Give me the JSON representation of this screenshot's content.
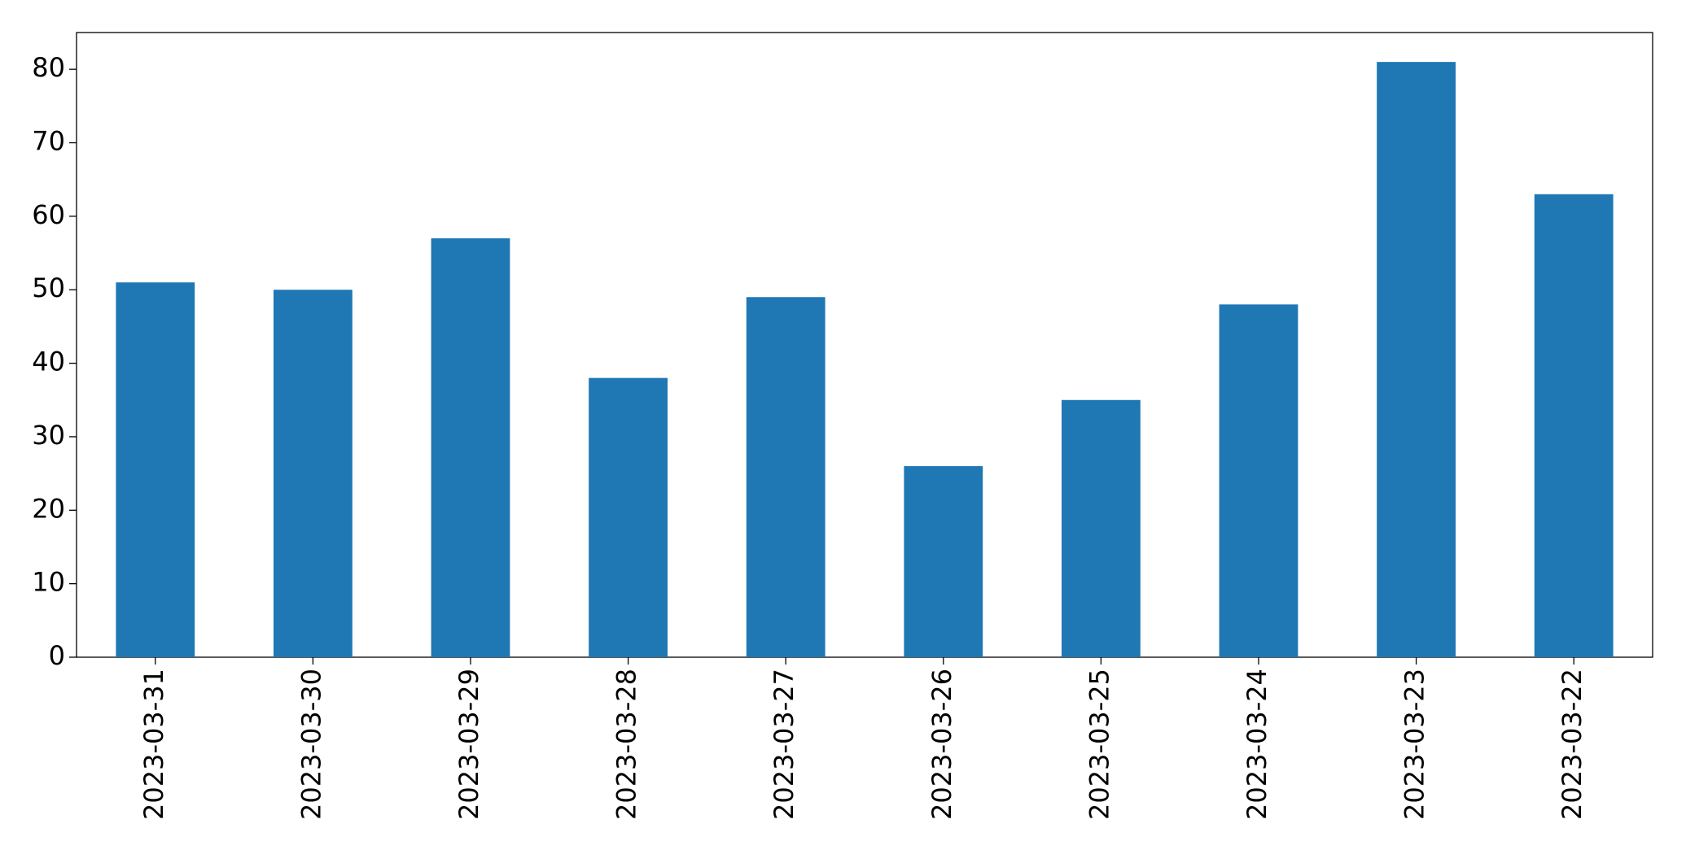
{
  "chart_data": {
    "type": "bar",
    "categories": [
      "2023-03-31",
      "2023-03-30",
      "2023-03-29",
      "2023-03-28",
      "2023-03-27",
      "2023-03-26",
      "2023-03-25",
      "2023-03-24",
      "2023-03-23",
      "2023-03-22"
    ],
    "values": [
      51,
      50,
      57,
      38,
      49,
      26,
      35,
      48,
      81,
      63
    ],
    "color": "#1f77b4",
    "ylim": [
      0,
      85
    ],
    "yticks": [
      0,
      10,
      20,
      30,
      40,
      50,
      60,
      70,
      80
    ],
    "grid": false
  }
}
